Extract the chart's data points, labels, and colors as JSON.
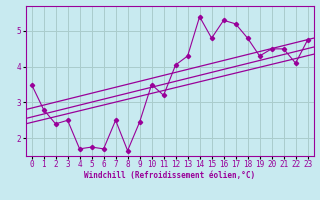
{
  "xlabel": "Windchill (Refroidissement éolien,°C)",
  "bg_color": "#c8eaf0",
  "line_color": "#990099",
  "grid_color": "#aacccc",
  "x_data": [
    0,
    1,
    2,
    3,
    4,
    5,
    6,
    7,
    8,
    9,
    10,
    11,
    12,
    13,
    14,
    15,
    16,
    17,
    18,
    19,
    20,
    21,
    22,
    23
  ],
  "y_data": [
    3.5,
    2.8,
    2.4,
    2.5,
    1.7,
    1.75,
    1.7,
    2.5,
    1.65,
    2.45,
    3.5,
    3.2,
    4.05,
    4.3,
    5.4,
    4.8,
    5.3,
    5.2,
    4.8,
    4.3,
    4.5,
    4.5,
    4.1,
    4.75
  ],
  "ylim": [
    1.5,
    5.7
  ],
  "xlim": [
    -0.5,
    23.5
  ],
  "yticks": [
    2,
    3,
    4,
    5
  ],
  "xticks": [
    0,
    1,
    2,
    3,
    4,
    5,
    6,
    7,
    8,
    9,
    10,
    11,
    12,
    13,
    14,
    15,
    16,
    17,
    18,
    19,
    20,
    21,
    22,
    23
  ],
  "reg_line1": [
    2.7,
    4.4
  ],
  "reg_line2": [
    2.5,
    4.7
  ],
  "reg_line3": [
    2.3,
    4.55
  ]
}
